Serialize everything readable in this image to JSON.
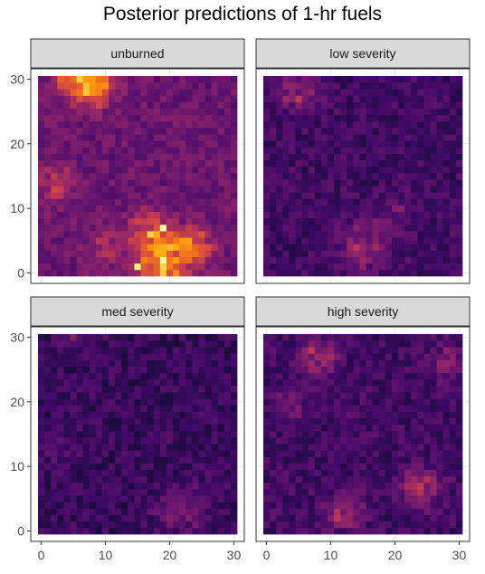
{
  "chart_data": {
    "type": "heatmap",
    "title": "Posterior predictions of 1-hr fuels",
    "xlabel": "",
    "ylabel": "",
    "xlim": [
      0,
      30
    ],
    "ylim": [
      0,
      30
    ],
    "x_ticks": [
      "0",
      "10",
      "20",
      "30"
    ],
    "y_ticks": [
      "0",
      "10",
      "20",
      "30"
    ],
    "grid_size": 31,
    "color_scale": "inferno",
    "legend": "none",
    "panels": [
      {
        "label": "unburned",
        "base": 0.3,
        "hotspots": [
          {
            "x": 8,
            "y": 29,
            "amp": 0.45,
            "r": 2.2
          },
          {
            "x": 4,
            "y": 30,
            "amp": 0.35,
            "r": 1.5
          },
          {
            "x": 19,
            "y": 2,
            "amp": 0.5,
            "r": 2.8
          },
          {
            "x": 17,
            "y": 7,
            "amp": 0.3,
            "r": 2.0
          },
          {
            "x": 24,
            "y": 4,
            "amp": 0.3,
            "r": 2.0
          },
          {
            "x": 2,
            "y": 14,
            "amp": 0.2,
            "r": 2.0
          },
          {
            "x": 10,
            "y": 4,
            "amp": 0.15,
            "r": 2.0
          }
        ],
        "peaks": [
          {
            "x": 19,
            "y": 7,
            "v": 1.0
          },
          {
            "x": 15,
            "y": 1,
            "v": 0.97
          },
          {
            "x": 6,
            "y": 30,
            "v": 0.88
          }
        ]
      },
      {
        "label": "low severity",
        "base": 0.2,
        "hotspots": [
          {
            "x": 5,
            "y": 28,
            "amp": 0.22,
            "r": 2.0
          },
          {
            "x": 15,
            "y": 4,
            "amp": 0.22,
            "r": 2.5
          },
          {
            "x": 20,
            "y": 9,
            "amp": 0.1,
            "r": 2.0
          }
        ],
        "peaks": []
      },
      {
        "label": "med severity",
        "base": 0.18,
        "hotspots": [
          {
            "x": 22,
            "y": 3,
            "amp": 0.12,
            "r": 3.0
          },
          {
            "x": 5,
            "y": 30,
            "amp": 0.12,
            "r": 1.5
          },
          {
            "x": 3,
            "y": 12,
            "amp": 0.08,
            "r": 2.0
          }
        ],
        "peaks": []
      },
      {
        "label": "high severity",
        "base": 0.2,
        "hotspots": [
          {
            "x": 8,
            "y": 27,
            "amp": 0.28,
            "r": 1.8
          },
          {
            "x": 24,
            "y": 7,
            "amp": 0.28,
            "r": 2.0
          },
          {
            "x": 12,
            "y": 3,
            "amp": 0.22,
            "r": 2.0
          },
          {
            "x": 28,
            "y": 26,
            "amp": 0.15,
            "r": 1.8
          },
          {
            "x": 4,
            "y": 20,
            "amp": 0.1,
            "r": 2.0
          }
        ],
        "peaks": []
      }
    ]
  }
}
